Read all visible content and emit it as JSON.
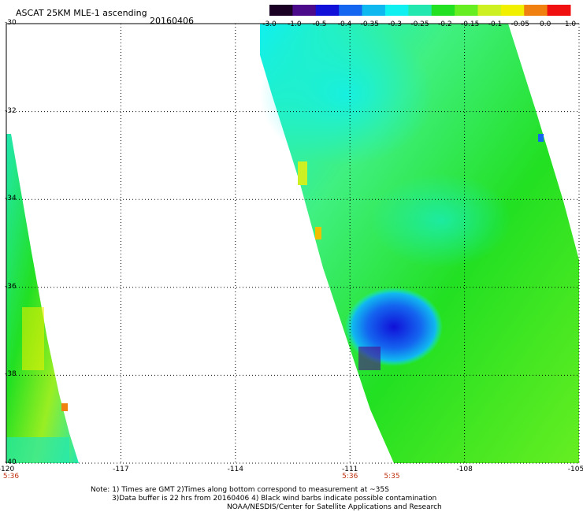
{
  "header": {
    "title": "ASCAT 25KM MLE-1 ascending",
    "date": "20160406"
  },
  "colorbar": {
    "labels": [
      "-3.0",
      "-1.0",
      "-0.5",
      "-0.4",
      "-0.35",
      "-0.3",
      "-0.25",
      "-0.2",
      "-0.15",
      "-0.1",
      "-0.05",
      "0.0",
      "1.0"
    ],
    "colors": [
      "#1a0022",
      "#4b0a8a",
      "#1010d8",
      "#1466f0",
      "#10b8f0",
      "#10f0f0",
      "#22e8b0",
      "#22e022",
      "#66ee22",
      "#ccf022",
      "#f0f000",
      "#f08010",
      "#f01010"
    ]
  },
  "map": {
    "lon_range": [
      -120,
      -105
    ],
    "lat_range": [
      -30,
      -40
    ],
    "x_ticks": [
      "-120",
      "-117",
      "-114",
      "-111",
      "-108",
      "-105"
    ],
    "y_ticks": [
      "-30",
      "-32",
      "-34",
      "-36",
      "-38",
      "-40"
    ],
    "grid": true,
    "swath_times": [
      {
        "lon": -120,
        "label": "5:36"
      },
      {
        "lon": -111,
        "label": "5:36"
      },
      {
        "lon": -109.9,
        "label": "5:35"
      }
    ]
  },
  "notes": {
    "line1": "Note: 1) Times are GMT 2)Times along bottom correspond to measurement at ~35S",
    "line2": "3)Data buffer is 22 hrs from 20160406 4) Black wind barbs indicate possible contamination",
    "line3": "NOAA/NESDIS/Center for Satellite Applications and Research"
  }
}
